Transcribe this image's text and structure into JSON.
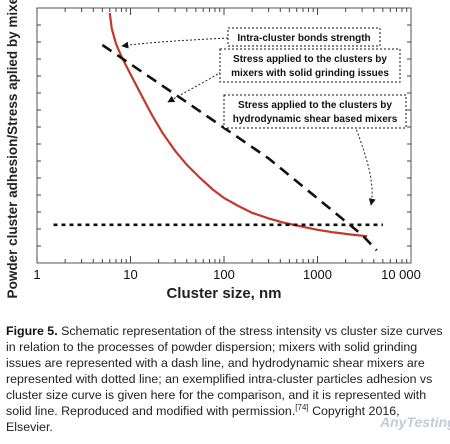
{
  "chart_data": {
    "type": "line",
    "xlabel": "Cluster size, nm",
    "ylabel": "Powder cluster adhesion/Stress aplied by mixer",
    "xscale": "log",
    "xlim": [
      1,
      10000
    ],
    "x_tick_labels": [
      "1",
      "10",
      "100",
      "1000",
      "10 000"
    ],
    "y_ticks_count": 14,
    "y_axis_numeric_labels": false,
    "series": [
      {
        "style": "solid",
        "color": "#c0392b",
        "x": [
          6,
          6.3,
          7,
          8,
          10,
          13,
          17,
          22,
          30,
          40,
          55,
          75,
          100,
          140,
          200,
          300,
          450,
          700,
          1000,
          1500,
          2200,
          3000,
          3400
        ],
        "y": [
          0.98,
          0.92,
          0.86,
          0.81,
          0.74,
          0.66,
          0.58,
          0.51,
          0.44,
          0.385,
          0.335,
          0.29,
          0.255,
          0.225,
          0.197,
          0.175,
          0.157,
          0.142,
          0.13,
          0.12,
          0.112,
          0.107,
          0.105
        ]
      },
      {
        "style": "dashed",
        "color": "#111111",
        "x": [
          5,
          40,
          300,
          3000,
          4300
        ],
        "y": [
          0.855,
          0.63,
          0.41,
          0.11,
          0.05
        ]
      },
      {
        "style": "dotted",
        "color": "#111111",
        "x": [
          1.5,
          5000
        ],
        "y": [
          0.15,
          0.15
        ]
      }
    ],
    "annotations": [
      {
        "lines": [
          "Intra-cluster bonds strength"
        ]
      },
      {
        "lines": [
          "Stress applied to the clusters by",
          "mixers with solid grinding issues"
        ]
      },
      {
        "lines": [
          "Stress applied to the clusters by",
          "hydrodynamic shear based mixers"
        ]
      }
    ]
  },
  "caption": {
    "label": "Figure 5.",
    "text": "Schematic representation of the stress intensity vs cluster size curves in relation to the processes of powder dispersion; mixers with solid grinding issues are represented with a dash line, and hydrodynamic shear mixers are represented with dotted line; an exemplified intra-cluster particles adhesion vs cluster size curve is given here for the comparison, and it is represented with solid line. Reproduced and modified with permission.",
    "ref": "[74]",
    "copyright": "Copyright 2016, Elsevier."
  },
  "watermark": "AnyTesting.com"
}
